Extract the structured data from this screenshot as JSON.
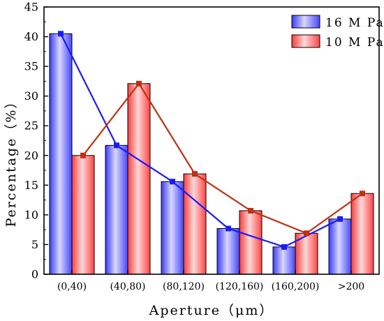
{
  "chart_data": {
    "type": "bar",
    "title": "",
    "xlabel": "Aperture（μm）",
    "ylabel": "Percentage（%）",
    "ylim": [
      0,
      45
    ],
    "yticks": [
      0,
      5,
      10,
      15,
      20,
      25,
      30,
      35,
      40,
      45
    ],
    "categories": [
      "(0,40)",
      "(40,80)",
      "(80,120)",
      "(120,160)",
      "(160,200)",
      ">200"
    ],
    "series": [
      {
        "name": "16 M Pa",
        "values": [
          40.5,
          21.7,
          15.6,
          7.7,
          4.6,
          9.3
        ],
        "color": "#1a1aff",
        "overlay": "line"
      },
      {
        "name": "10 M Pa",
        "values": [
          20.0,
          32.1,
          16.9,
          10.7,
          6.9,
          13.6
        ],
        "color": "#c03010",
        "overlay": "line"
      }
    ],
    "legend_position": "top-right",
    "grid": false
  }
}
